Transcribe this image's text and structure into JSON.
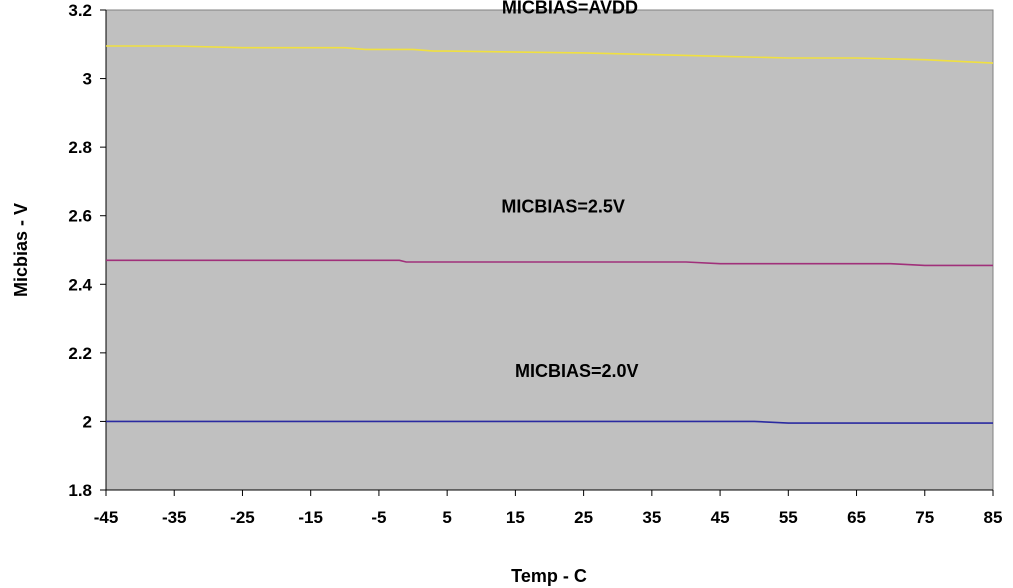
{
  "chart_data": {
    "type": "line",
    "title": "",
    "xlabel": "Temp - C",
    "ylabel": "Micbias - V",
    "xlim": [
      -45,
      85
    ],
    "ylim": [
      1.8,
      3.2
    ],
    "x_ticks": [
      -45,
      -35,
      -25,
      -15,
      -5,
      5,
      15,
      25,
      35,
      45,
      55,
      65,
      75,
      85
    ],
    "y_ticks": [
      1.8,
      2,
      2.2,
      2.4,
      2.6,
      2.8,
      3,
      3.2
    ],
    "grid": false,
    "legend": "none",
    "plot_background": "#c0c0c0",
    "series": [
      {
        "color": "#f0e040",
        "x": [
          -45,
          -35,
          -25,
          -15,
          -10,
          -7,
          -5,
          0,
          3,
          5,
          25,
          35,
          45,
          55,
          65,
          75,
          85
        ],
        "y": [
          3.095,
          3.095,
          3.09,
          3.09,
          3.09,
          3.085,
          3.085,
          3.085,
          3.08,
          3.08,
          3.075,
          3.07,
          3.065,
          3.06,
          3.06,
          3.055,
          3.045
        ]
      },
      {
        "color": "#a0307a",
        "x": [
          -45,
          -35,
          -25,
          -15,
          -5,
          -2,
          -1,
          5,
          15,
          25,
          35,
          40,
          45,
          55,
          65,
          70,
          75,
          85
        ],
        "y": [
          2.47,
          2.47,
          2.47,
          2.47,
          2.47,
          2.47,
          2.465,
          2.465,
          2.465,
          2.465,
          2.465,
          2.465,
          2.46,
          2.46,
          2.46,
          2.46,
          2.455,
          2.455
        ]
      },
      {
        "color": "#2a2aa0",
        "x": [
          -45,
          -35,
          -25,
          -15,
          -5,
          5,
          15,
          25,
          35,
          45,
          50,
          55,
          65,
          75,
          85
        ],
        "y": [
          2.0,
          2.0,
          2.0,
          2.0,
          2.0,
          2.0,
          2.0,
          2.0,
          2.0,
          2.0,
          2.0,
          1.995,
          1.995,
          1.995,
          1.995
        ]
      }
    ],
    "annotations": [
      {
        "text": "MICBIAS=AVDD",
        "x": 23,
        "y": 3.19
      },
      {
        "text": "MICBIAS=2.5V",
        "x": 22,
        "y": 2.61
      },
      {
        "text": "MICBIAS=2.0V",
        "x": 24,
        "y": 2.13
      }
    ]
  }
}
